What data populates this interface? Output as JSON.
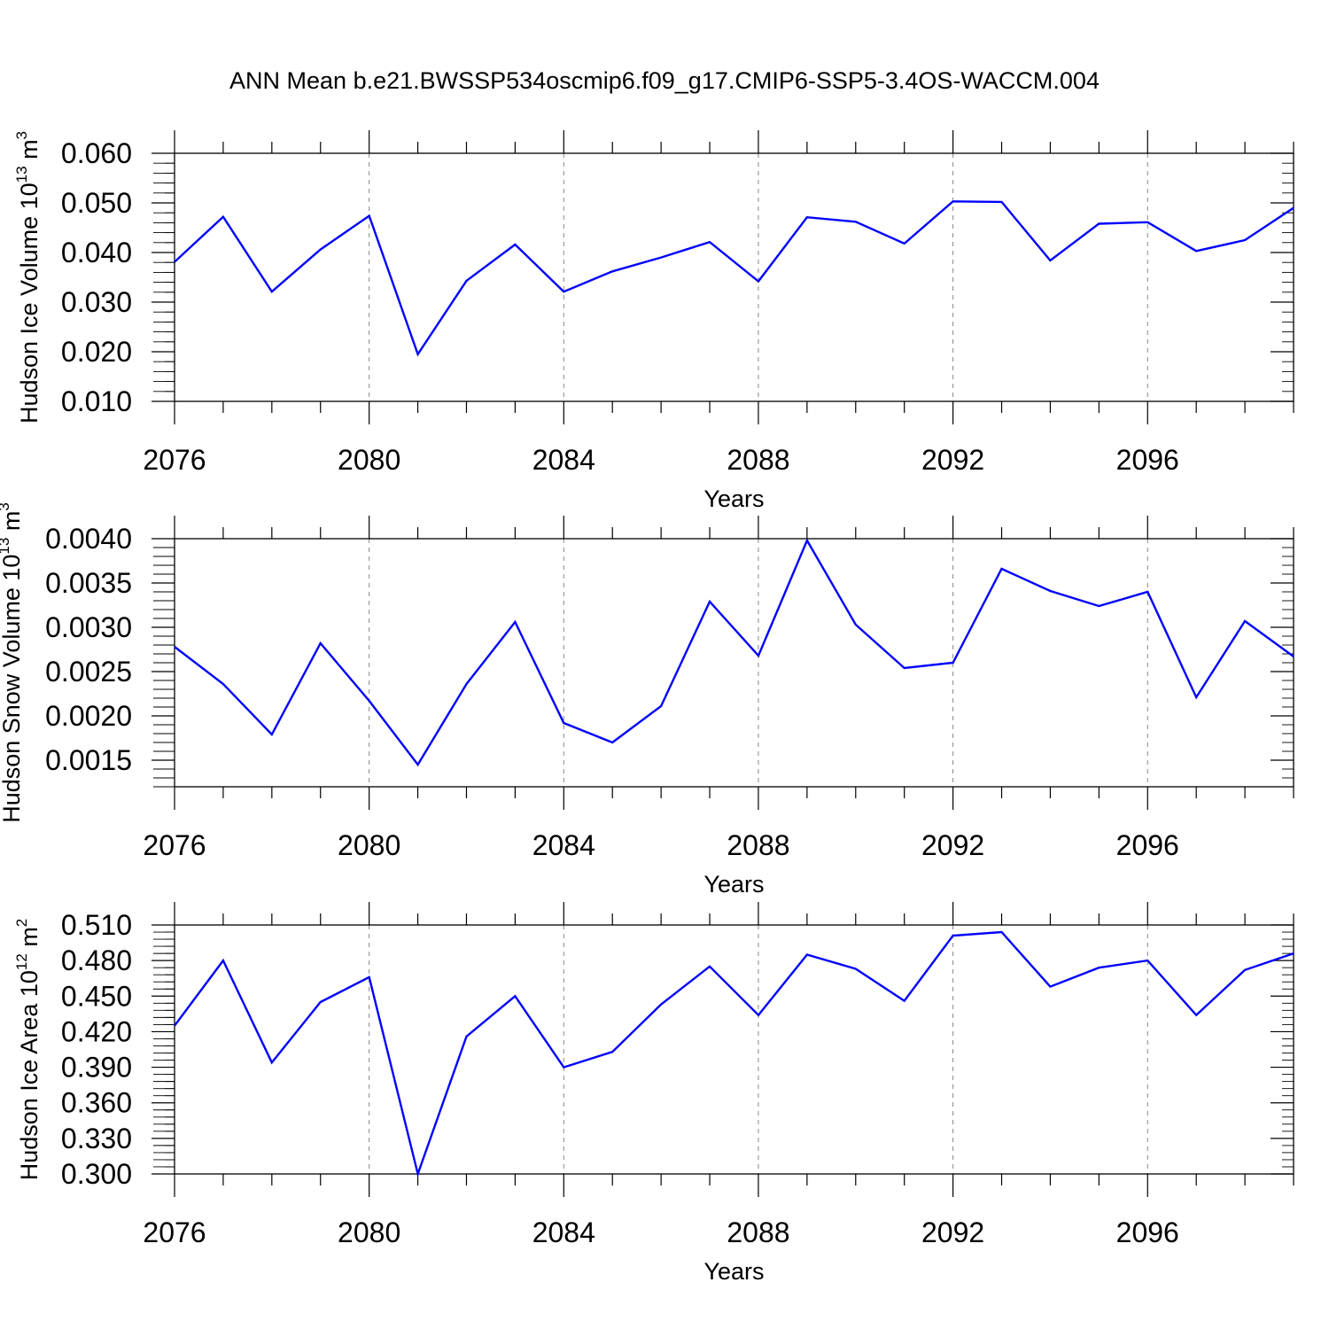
{
  "title": "ANN Mean b.e21.BWSSP534oscmip6.f09_g17.CMIP6-SSP5-3.4OS-WACCM.004",
  "colors": {
    "line": "#0000ff",
    "axis": "#000000",
    "grid": "#888888"
  },
  "chart_data": [
    {
      "type": "line",
      "xlabel": "Years",
      "ylabel": "Hudson Ice Volume 10",
      "ylabel_exp": "13",
      "ylabel_unit": " m",
      "ylabel_unit_exp": "3",
      "xlim": [
        2076,
        2099
      ],
      "ylim": [
        0.01,
        0.06
      ],
      "yticks": [
        "0.010",
        "0.020",
        "0.030",
        "0.040",
        "0.050",
        "0.060"
      ],
      "ytick_values": [
        0.01,
        0.02,
        0.03,
        0.04,
        0.05,
        0.06
      ],
      "yminor_step": 0.002,
      "xticks": [
        "2076",
        "2080",
        "2084",
        "2088",
        "2092",
        "2096"
      ],
      "xtick_values": [
        2076,
        2080,
        2084,
        2088,
        2092,
        2096
      ],
      "x": [
        2076,
        2077,
        2078,
        2079,
        2080,
        2081,
        2082,
        2083,
        2084,
        2085,
        2086,
        2087,
        2088,
        2089,
        2090,
        2091,
        2092,
        2093,
        2094,
        2095,
        2096,
        2097,
        2098,
        2099
      ],
      "y": [
        0.0381,
        0.0472,
        0.0321,
        0.0406,
        0.0474,
        0.0195,
        0.0343,
        0.0416,
        0.0321,
        0.0362,
        0.039,
        0.0421,
        0.0342,
        0.0471,
        0.0462,
        0.0418,
        0.0503,
        0.0502,
        0.0384,
        0.0458,
        0.0461,
        0.0403,
        0.0425,
        0.049
      ]
    },
    {
      "type": "line",
      "xlabel": "Years",
      "ylabel": "Hudson Snow Volume 10",
      "ylabel_exp": "13",
      "ylabel_unit": " m",
      "ylabel_unit_exp": "3",
      "xlim": [
        2076,
        2099
      ],
      "ylim": [
        0.0012,
        0.004
      ],
      "yticks": [
        "0.0015",
        "0.0020",
        "0.0025",
        "0.0030",
        "0.0035",
        "0.0040"
      ],
      "ytick_values": [
        0.0015,
        0.002,
        0.0025,
        0.003,
        0.0035,
        0.004
      ],
      "yminor_step": 0.0001,
      "xticks": [
        "2076",
        "2080",
        "2084",
        "2088",
        "2092",
        "2096"
      ],
      "xtick_values": [
        2076,
        2080,
        2084,
        2088,
        2092,
        2096
      ],
      "x": [
        2076,
        2077,
        2078,
        2079,
        2080,
        2081,
        2082,
        2083,
        2084,
        2085,
        2086,
        2087,
        2088,
        2089,
        2090,
        2091,
        2092,
        2093,
        2094,
        2095,
        2096,
        2097,
        2098,
        2099
      ],
      "y": [
        0.00278,
        0.00236,
        0.00179,
        0.00282,
        0.00217,
        0.00145,
        0.00236,
        0.00306,
        0.00192,
        0.0017,
        0.00211,
        0.00329,
        0.00268,
        0.00398,
        0.00303,
        0.00254,
        0.0026,
        0.00366,
        0.00341,
        0.00324,
        0.0034,
        0.00221,
        0.00307,
        0.00267
      ]
    },
    {
      "type": "line",
      "xlabel": "Years",
      "ylabel": "Hudson Ice Area 10",
      "ylabel_exp": "12",
      "ylabel_unit": " m",
      "ylabel_unit_exp": "2",
      "xlim": [
        2076,
        2099
      ],
      "ylim": [
        0.3,
        0.51
      ],
      "yticks": [
        "0.300",
        "0.330",
        "0.360",
        "0.390",
        "0.420",
        "0.450",
        "0.480",
        "0.510"
      ],
      "ytick_values": [
        0.3,
        0.33,
        0.36,
        0.39,
        0.42,
        0.45,
        0.48,
        0.51
      ],
      "yminor_step": 0.006,
      "xticks": [
        "2076",
        "2080",
        "2084",
        "2088",
        "2092",
        "2096"
      ],
      "xtick_values": [
        2076,
        2080,
        2084,
        2088,
        2092,
        2096
      ],
      "x": [
        2076,
        2077,
        2078,
        2079,
        2080,
        2081,
        2082,
        2083,
        2084,
        2085,
        2086,
        2087,
        2088,
        2089,
        2090,
        2091,
        2092,
        2093,
        2094,
        2095,
        2096,
        2097,
        2098,
        2099
      ],
      "y": [
        0.425,
        0.48,
        0.394,
        0.445,
        0.466,
        0.3,
        0.416,
        0.45,
        0.39,
        0.403,
        0.443,
        0.475,
        0.434,
        0.485,
        0.473,
        0.446,
        0.501,
        0.504,
        0.458,
        0.474,
        0.48,
        0.434,
        0.472,
        0.486
      ]
    }
  ]
}
